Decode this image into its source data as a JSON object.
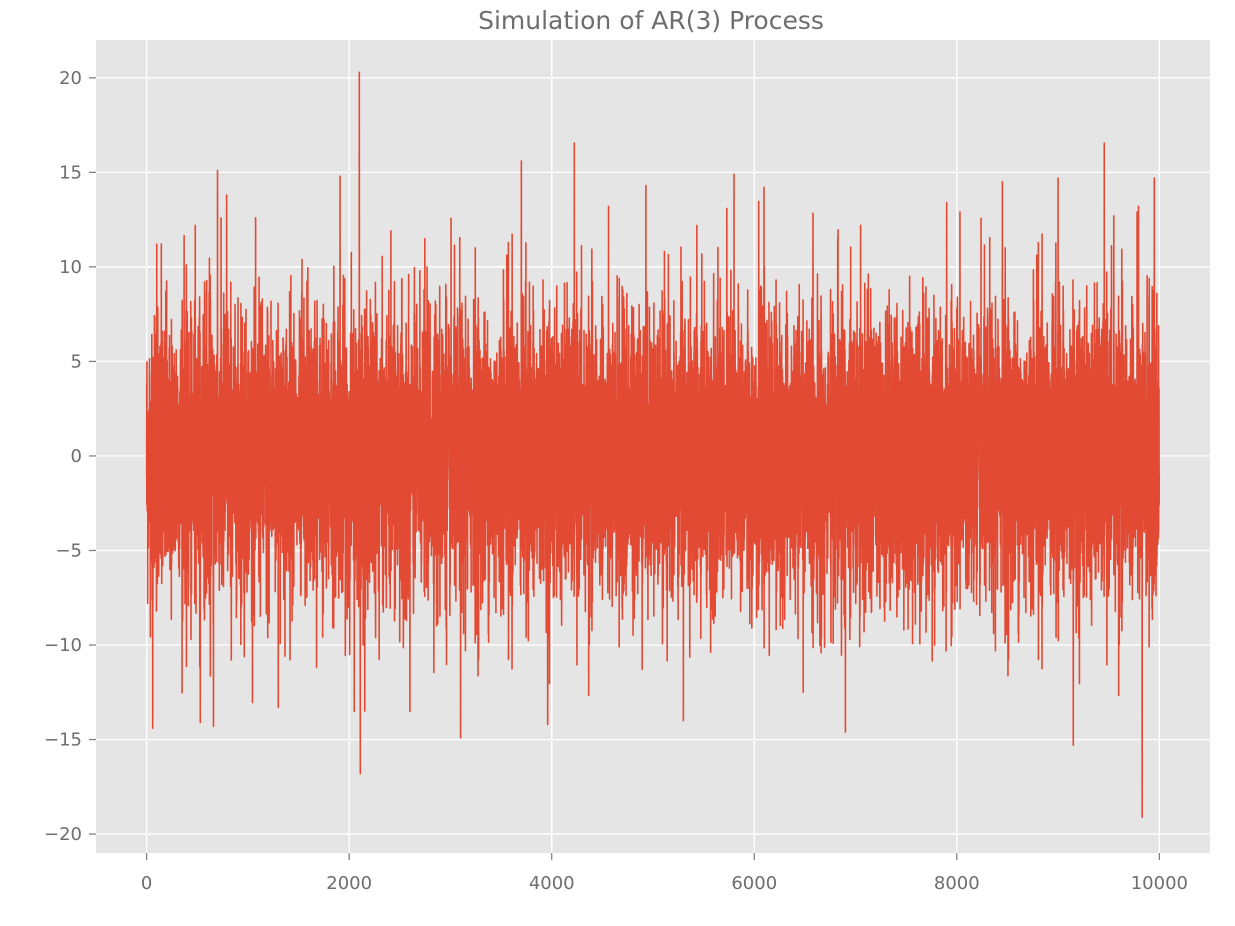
{
  "chart_data": {
    "type": "line",
    "title": "Simulation of AR(3) Process",
    "xlabel": "",
    "ylabel": "",
    "n_points": 10000,
    "xlim": [
      -500,
      10500
    ],
    "ylim": [
      -21,
      22
    ],
    "xticks": [
      0,
      2000,
      4000,
      6000,
      8000,
      10000
    ],
    "yticks": [
      -20,
      -15,
      -10,
      -5,
      0,
      5,
      10,
      15,
      20
    ],
    "xtick_labels": [
      "0",
      "2000",
      "4000",
      "6000",
      "8000",
      "10000"
    ],
    "ytick_labels": [
      "−20",
      "−15",
      "−10",
      "−5",
      "0",
      "5",
      "10",
      "15",
      "20"
    ],
    "grid": true,
    "legend": "none",
    "series": [
      {
        "color": "#e24a33",
        "typical_range": [
          -9,
          9
        ],
        "extremes": [
          {
            "x": 60,
            "y": -14.4
          },
          {
            "x": 100,
            "y": 11.2
          },
          {
            "x": 480,
            "y": 12.2
          },
          {
            "x": 530,
            "y": -14.1
          },
          {
            "x": 660,
            "y": -14.3
          },
          {
            "x": 700,
            "y": 15.1
          },
          {
            "x": 790,
            "y": 13.8
          },
          {
            "x": 1300,
            "y": -13.3
          },
          {
            "x": 1910,
            "y": 14.8
          },
          {
            "x": 2050,
            "y": -13.5
          },
          {
            "x": 2100,
            "y": 20.3
          },
          {
            "x": 2110,
            "y": -16.8
          },
          {
            "x": 2600,
            "y": -13.5
          },
          {
            "x": 3100,
            "y": -14.9
          },
          {
            "x": 3700,
            "y": 15.6
          },
          {
            "x": 3960,
            "y": -14.2
          },
          {
            "x": 4930,
            "y": 14.3
          },
          {
            "x": 5300,
            "y": -14.0
          },
          {
            "x": 5800,
            "y": 14.9
          },
          {
            "x": 6900,
            "y": -14.6
          },
          {
            "x": 7050,
            "y": 12.2
          },
          {
            "x": 7900,
            "y": 13.4
          },
          {
            "x": 8450,
            "y": 14.5
          },
          {
            "x": 9000,
            "y": 14.7
          },
          {
            "x": 9150,
            "y": -15.3
          },
          {
            "x": 9550,
            "y": 12.7
          },
          {
            "x": 9780,
            "y": 12.9
          },
          {
            "x": 9830,
            "y": -19.1
          },
          {
            "x": 9950,
            "y": 14.7
          }
        ]
      }
    ]
  }
}
